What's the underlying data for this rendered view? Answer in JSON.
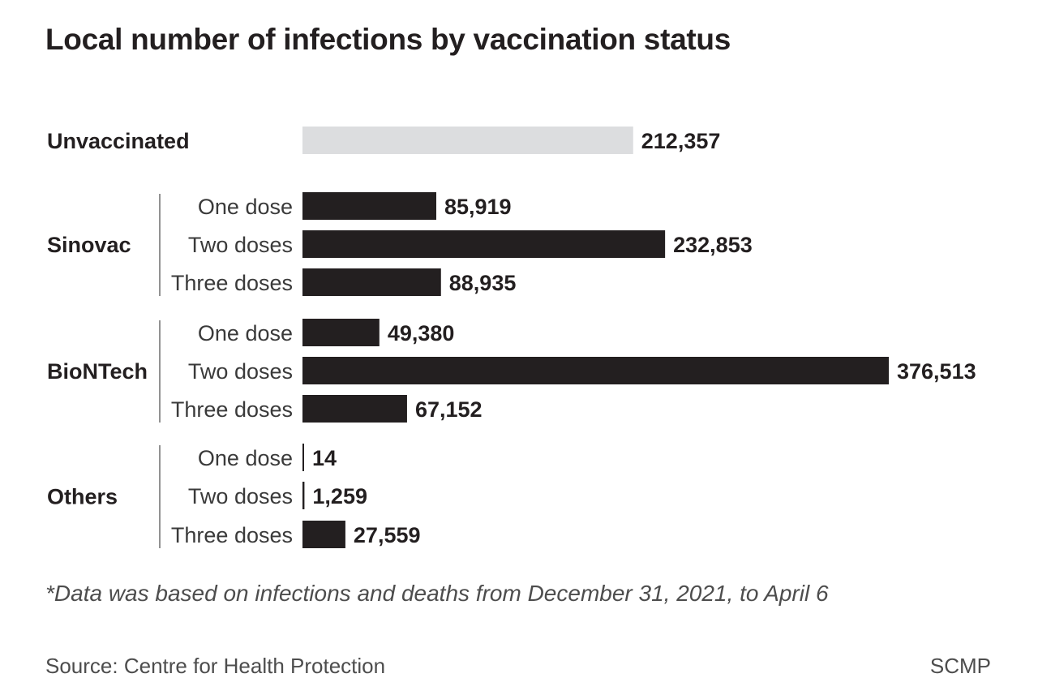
{
  "chart_data": {
    "type": "bar",
    "orientation": "horizontal",
    "title": "Local number of infections by vaccination status",
    "groups": [
      {
        "name": "Unvaccinated",
        "color": "#dcdddf",
        "bars": [
          {
            "label": "",
            "value": 212357,
            "value_label": "212,357"
          }
        ]
      },
      {
        "name": "Sinovac",
        "color": "#231f20",
        "bars": [
          {
            "label": "One dose",
            "value": 85919,
            "value_label": "85,919"
          },
          {
            "label": "Two doses",
            "value": 232853,
            "value_label": "232,853"
          },
          {
            "label": "Three doses",
            "value": 88935,
            "value_label": "88,935"
          }
        ]
      },
      {
        "name": "BioNTech",
        "color": "#231f20",
        "bars": [
          {
            "label": "One dose",
            "value": 49380,
            "value_label": "49,380"
          },
          {
            "label": "Two doses",
            "value": 376513,
            "value_label": "376,513"
          },
          {
            "label": "Three doses",
            "value": 67152,
            "value_label": "67,152"
          }
        ]
      },
      {
        "name": "Others",
        "color": "#231f20",
        "bars": [
          {
            "label": "One dose",
            "value": 14,
            "value_label": "14"
          },
          {
            "label": "Two doses",
            "value": 1259,
            "value_label": "1,259"
          },
          {
            "label": "Three doses",
            "value": 27559,
            "value_label": "27,559"
          }
        ]
      }
    ],
    "xlim": [
      0,
      376513
    ],
    "grid": false,
    "axes_visible": false
  },
  "footnote": "*Data was based on infections and deaths from December 31, 2021, to April 6",
  "source": "Source: Centre for Health Protection",
  "credit": "SCMP"
}
